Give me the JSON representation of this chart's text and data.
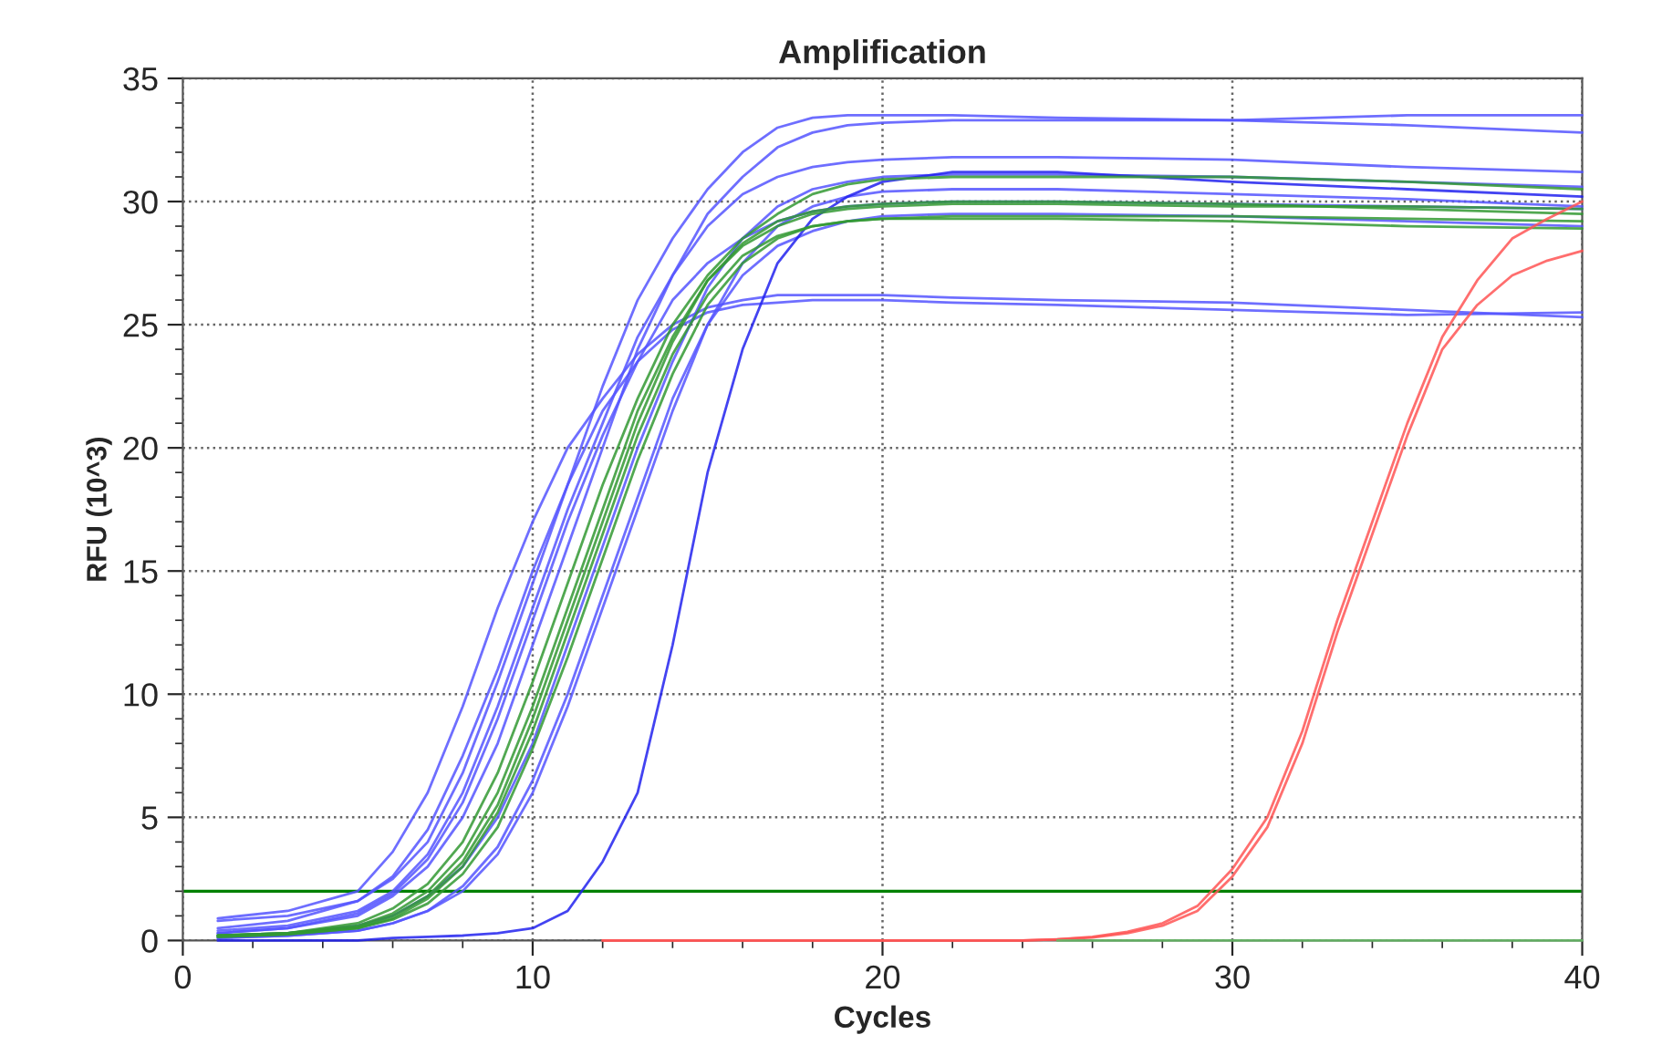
{
  "chart_data": {
    "type": "line",
    "title": "Amplification",
    "xlabel": "Cycles",
    "ylabel": "RFU (10^3)",
    "xlim": [
      0,
      40
    ],
    "xticks": [
      0,
      10,
      20,
      30,
      40
    ],
    "ylim": [
      0,
      35
    ],
    "yticks": [
      0,
      5,
      10,
      15,
      20,
      25,
      30,
      35
    ],
    "grid": true,
    "legend": false,
    "marker": "none",
    "line_style": "solid",
    "x": [
      1,
      3,
      5,
      6,
      7,
      8,
      9,
      10,
      11,
      12,
      13,
      14,
      15,
      16,
      17,
      18,
      19,
      20,
      22,
      25,
      30,
      35,
      40
    ],
    "ref_lines": [
      {
        "axis": "y",
        "value": 2,
        "color": "#008000"
      }
    ],
    "series": [
      {
        "color": "#5555ff",
        "values": [
          0.9,
          1.2,
          2.0,
          3.6,
          6,
          9.5,
          13.5,
          17,
          20,
          22,
          23.8,
          25,
          25.7,
          26,
          26.2,
          26.2,
          26.2,
          26.2,
          26.1,
          26.0,
          25.9,
          25.6,
          25.3
        ]
      },
      {
        "color": "#5555ff",
        "values": [
          0.8,
          1.0,
          1.6,
          2.6,
          4.5,
          7.5,
          11,
          15,
          18.5,
          21.5,
          23.5,
          24.8,
          25.5,
          25.8,
          25.9,
          26,
          26,
          26,
          25.9,
          25.8,
          25.6,
          25.4,
          25.5
        ]
      },
      {
        "color": "#5555ff",
        "values": [
          0.5,
          0.8,
          1.6,
          2.5,
          4,
          6.8,
          10.5,
          14.5,
          18.5,
          22.5,
          26,
          28.5,
          30.5,
          32,
          33,
          33.4,
          33.5,
          33.5,
          33.5,
          33.4,
          33.3,
          33.1,
          32.8
        ]
      },
      {
        "color": "#5555ff",
        "values": [
          0.3,
          0.5,
          1,
          1.8,
          3,
          5,
          8,
          12,
          16,
          20,
          24,
          27,
          29.5,
          31,
          32.2,
          32.8,
          33.1,
          33.2,
          33.3,
          33.3,
          33.3,
          33.5,
          33.5
        ]
      },
      {
        "color": "#5555ff",
        "values": [
          0.4,
          0.6,
          1.2,
          2,
          3.5,
          6,
          9.5,
          13.5,
          17.5,
          21,
          24.5,
          27,
          29,
          30.3,
          31,
          31.4,
          31.6,
          31.7,
          31.8,
          31.8,
          31.7,
          31.4,
          31.2
        ]
      },
      {
        "color": "#5555ff",
        "values": [
          0.2,
          0.3,
          0.6,
          1,
          1.8,
          3,
          5,
          8,
          12,
          16,
          20,
          23.5,
          26.5,
          28.5,
          29.8,
          30.5,
          30.8,
          31,
          31.1,
          31.1,
          31,
          30.8,
          30.6
        ]
      },
      {
        "color": "#5555ff",
        "values": [
          0.1,
          0.2,
          0.4,
          0.7,
          1.2,
          2,
          3.5,
          6,
          9.5,
          13.5,
          17.5,
          21.5,
          25,
          27.5,
          29,
          29.8,
          30.2,
          30.4,
          30.5,
          30.5,
          30.3,
          30.1,
          29.8
        ]
      },
      {
        "color": "#5555ff",
        "values": [
          0.1,
          0.2,
          0.4,
          0.7,
          1.2,
          2.2,
          3.8,
          6.5,
          10,
          14,
          18,
          22,
          25,
          27,
          28.2,
          28.8,
          29.2,
          29.4,
          29.5,
          29.5,
          29.4,
          29.2,
          29.0
        ]
      },
      {
        "color": "#2222ee",
        "values": [
          0,
          0,
          0,
          0.1,
          0.15,
          0.2,
          0.3,
          0.5,
          1.2,
          3.2,
          6,
          12,
          19,
          24,
          27.5,
          29.3,
          30.2,
          30.8,
          31.2,
          31.2,
          30.8,
          30.5,
          30.2
        ]
      },
      {
        "color": "#5555ff",
        "values": [
          0.3,
          0.5,
          1.1,
          1.9,
          3.3,
          5.6,
          9,
          13,
          17,
          20.5,
          23.5,
          26,
          27.5,
          28.5,
          29.2,
          29.6,
          29.8,
          29.9,
          30,
          30,
          29.9,
          29.8,
          29.7
        ]
      },
      {
        "color": "#339933",
        "values": [
          0.2,
          0.3,
          0.7,
          1.3,
          2.3,
          4,
          6.8,
          10.5,
          14.5,
          18.5,
          22,
          25,
          27,
          28.5,
          29.5,
          30.3,
          30.7,
          30.9,
          31,
          31,
          31,
          30.8,
          30.5
        ]
      },
      {
        "color": "#339933",
        "values": [
          0.2,
          0.3,
          0.6,
          1.1,
          2,
          3.5,
          6,
          9.5,
          13.5,
          17.5,
          21.5,
          24.5,
          26.8,
          28.2,
          29,
          29.5,
          29.7,
          29.8,
          29.9,
          29.9,
          29.8,
          29.8,
          29.7
        ]
      },
      {
        "color": "#339933",
        "values": [
          0.15,
          0.25,
          0.5,
          0.9,
          1.7,
          3,
          5.2,
          8.5,
          12.5,
          16.5,
          20.5,
          23.8,
          26.2,
          27.8,
          28.6,
          29,
          29.2,
          29.3,
          29.4,
          29.4,
          29.4,
          29.3,
          29.2
        ]
      },
      {
        "color": "#339933",
        "values": [
          0.2,
          0.3,
          0.55,
          1,
          1.8,
          3.2,
          5.5,
          9,
          13,
          17,
          21,
          24.3,
          26.8,
          28.3,
          29.2,
          29.6,
          29.8,
          29.9,
          30,
          30,
          29.9,
          29.7,
          29.5
        ]
      },
      {
        "color": "#339933",
        "values": [
          0.15,
          0.25,
          0.5,
          0.85,
          1.5,
          2.7,
          4.6,
          7.8,
          11.5,
          15.5,
          19.5,
          23,
          25.8,
          27.5,
          28.5,
          29,
          29.2,
          29.3,
          29.3,
          29.3,
          29.2,
          29,
          28.9
        ]
      },
      {
        "color": "#ff5555",
        "x": [
          12,
          20,
          24,
          25,
          26,
          27,
          28,
          29,
          30,
          31,
          32,
          33,
          34,
          35,
          36,
          37,
          38,
          39,
          40
        ],
        "values": [
          0,
          0,
          0,
          0.05,
          0.15,
          0.35,
          0.7,
          1.4,
          2.9,
          5,
          8.5,
          13,
          17,
          21,
          24.5,
          26.8,
          28.5,
          29.3,
          30.0
        ]
      },
      {
        "color": "#ff5555",
        "x": [
          12,
          20,
          24,
          25,
          26,
          27,
          28,
          29,
          30,
          31,
          32,
          33,
          34,
          35,
          36,
          37,
          38,
          39,
          40
        ],
        "values": [
          0,
          0,
          0,
          0.05,
          0.12,
          0.3,
          0.6,
          1.2,
          2.6,
          4.6,
          8,
          12.5,
          16.5,
          20.5,
          24,
          25.8,
          27,
          27.6,
          28.0
        ]
      },
      {
        "color": "#66bb66",
        "values": [
          null,
          null,
          null,
          null,
          null,
          null,
          null,
          null,
          null,
          null,
          null,
          null,
          null,
          null,
          null,
          null,
          null,
          null,
          null,
          0,
          0,
          0,
          0
        ]
      }
    ]
  }
}
